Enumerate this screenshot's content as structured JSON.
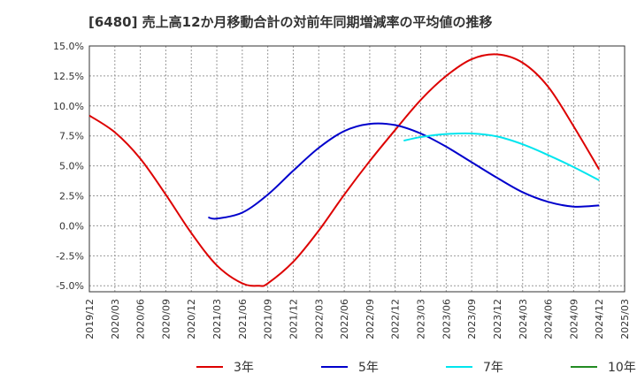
{
  "chart_data": {
    "type": "line",
    "title": "[6480]  売上高12か月移動合計の対前年同期増減率の平均値の推移",
    "xlabel": "",
    "ylabel": "",
    "ylim": [
      -5.5,
      15.0
    ],
    "yticks": [
      15.0,
      12.5,
      10.0,
      7.5,
      5.0,
      2.5,
      0.0,
      -2.5,
      -5.0
    ],
    "ytick_labels": [
      "15.0%",
      "12.5%",
      "10.0%",
      "7.5%",
      "5.0%",
      "2.5%",
      "0.0%",
      "-2.5%",
      "-5.0%"
    ],
    "x_ticks": [
      "2019/12",
      "2020/03",
      "2020/06",
      "2020/09",
      "2020/12",
      "2021/03",
      "2021/06",
      "2021/09",
      "2021/12",
      "2022/03",
      "2022/06",
      "2022/09",
      "2022/12",
      "2023/03",
      "2023/06",
      "2023/09",
      "2023/12",
      "2024/03",
      "2024/06",
      "2024/09",
      "2024/12",
      "2025/03"
    ],
    "grid": true,
    "legend_position": "bottom",
    "series": [
      {
        "name": "3年",
        "color": "#dd0000",
        "points": [
          [
            "2019/12",
            9.2
          ],
          [
            "2020/03",
            7.8
          ],
          [
            "2020/06",
            5.6
          ],
          [
            "2020/09",
            2.6
          ],
          [
            "2020/12",
            -0.6
          ],
          [
            "2021/03",
            -3.3
          ],
          [
            "2021/06",
            -4.8
          ],
          [
            "2021/08",
            -5.0
          ],
          [
            "2021/09",
            -4.8
          ],
          [
            "2021/12",
            -3.0
          ],
          [
            "2022/03",
            -0.4
          ],
          [
            "2022/06",
            2.6
          ],
          [
            "2022/09",
            5.4
          ],
          [
            "2022/12",
            8.0
          ],
          [
            "2023/03",
            10.5
          ],
          [
            "2023/06",
            12.5
          ],
          [
            "2023/09",
            13.9
          ],
          [
            "2023/12",
            14.3
          ],
          [
            "2024/03",
            13.6
          ],
          [
            "2024/06",
            11.6
          ],
          [
            "2024/09",
            8.3
          ],
          [
            "2024/12",
            4.7
          ]
        ]
      },
      {
        "name": "5年",
        "color": "#0000cc",
        "points": [
          [
            "2021/02",
            0.7
          ],
          [
            "2021/03",
            0.6
          ],
          [
            "2021/06",
            1.1
          ],
          [
            "2021/09",
            2.6
          ],
          [
            "2021/12",
            4.6
          ],
          [
            "2022/03",
            6.5
          ],
          [
            "2022/06",
            7.9
          ],
          [
            "2022/09",
            8.5
          ],
          [
            "2022/12",
            8.4
          ],
          [
            "2023/03",
            7.7
          ],
          [
            "2023/06",
            6.6
          ],
          [
            "2023/09",
            5.3
          ],
          [
            "2023/12",
            4.0
          ],
          [
            "2024/03",
            2.8
          ],
          [
            "2024/06",
            2.0
          ],
          [
            "2024/09",
            1.6
          ],
          [
            "2024/12",
            1.7
          ]
        ]
      },
      {
        "name": "7年",
        "color": "#00e5ee",
        "points": [
          [
            "2023/01",
            7.1
          ],
          [
            "2023/03",
            7.4
          ],
          [
            "2023/06",
            7.65
          ],
          [
            "2023/09",
            7.7
          ],
          [
            "2023/12",
            7.45
          ],
          [
            "2024/03",
            6.8
          ],
          [
            "2024/06",
            5.9
          ],
          [
            "2024/09",
            4.9
          ],
          [
            "2024/12",
            3.8
          ]
        ]
      },
      {
        "name": "10年",
        "color": "#228b22",
        "points": []
      }
    ]
  }
}
